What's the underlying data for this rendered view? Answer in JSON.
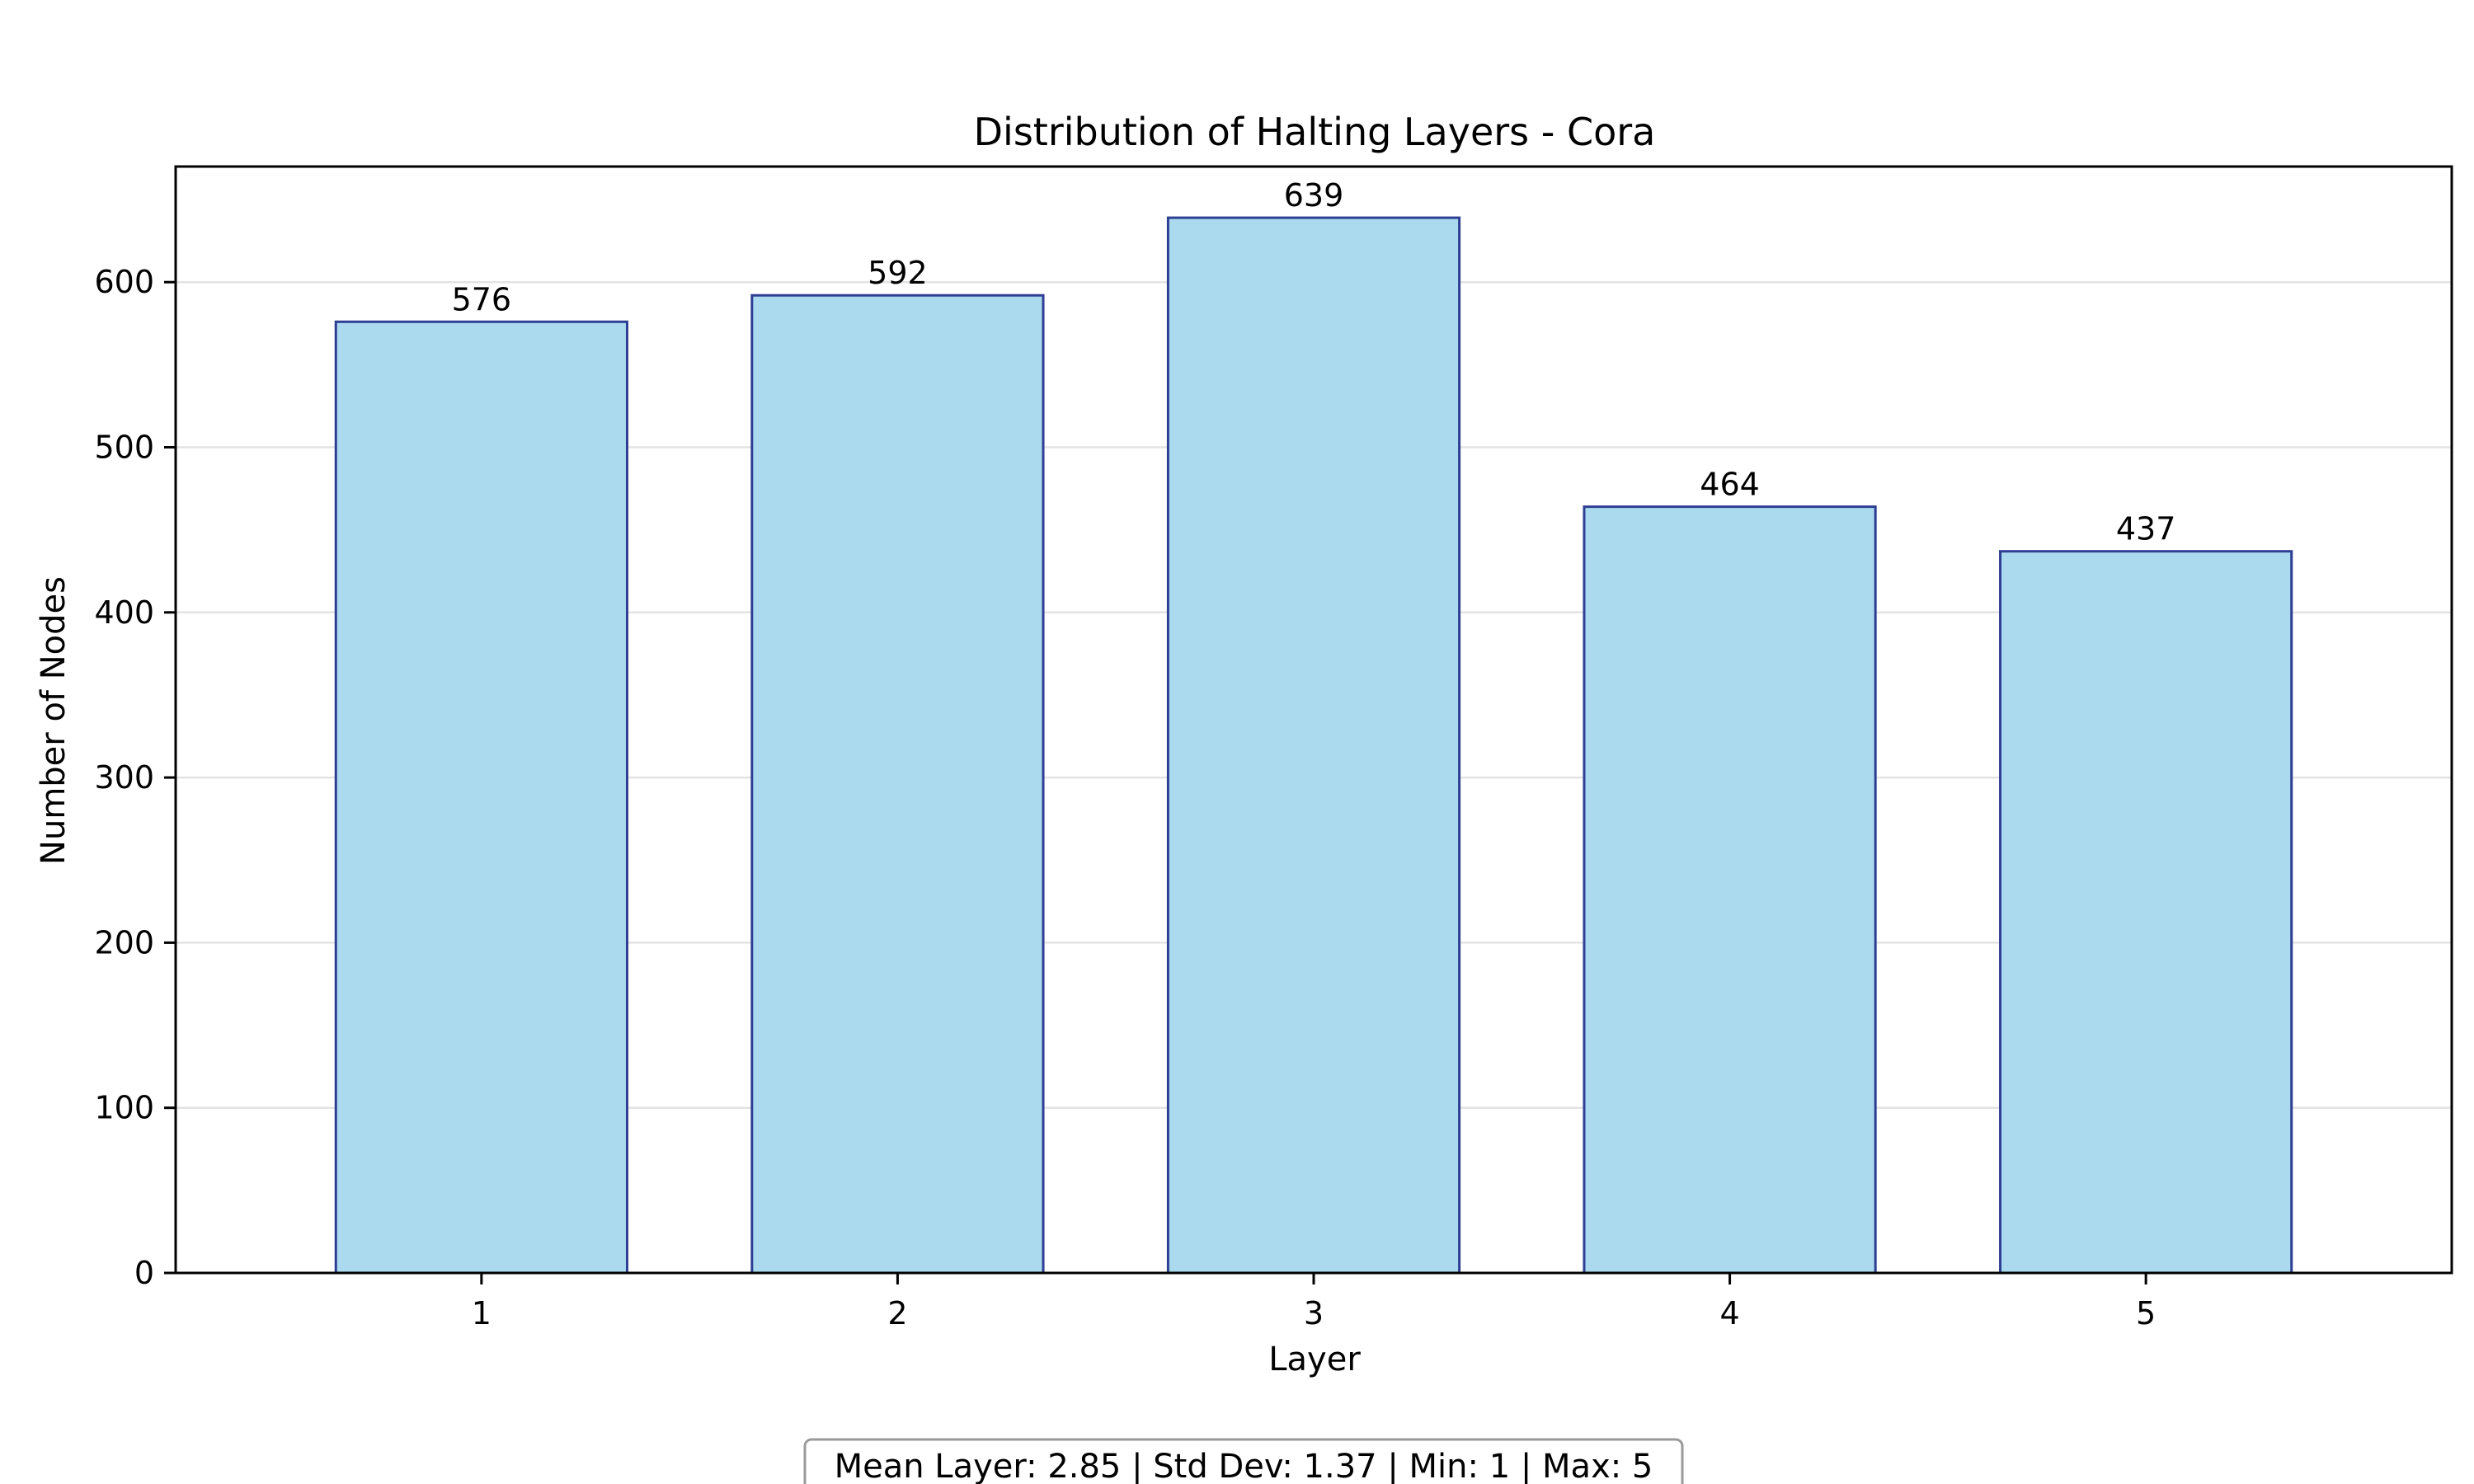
{
  "chart_data": {
    "type": "bar",
    "title": "Distribution of Halting Layers - Cora",
    "xlabel": "Layer",
    "ylabel": "Number of Nodes",
    "categories": [
      "1",
      "2",
      "3",
      "4",
      "5"
    ],
    "values": [
      576,
      592,
      639,
      464,
      437
    ],
    "ylim": [
      0,
      670
    ],
    "yticks": [
      0,
      100,
      200,
      300,
      400,
      500,
      600
    ],
    "grid": "horizontal",
    "bar_color": "#abdaef",
    "bar_edge_color": "#2e3f93",
    "stats_box": "Mean Layer: 2.85 | Std Dev: 1.37 | Min: 1 | Max: 5"
  }
}
